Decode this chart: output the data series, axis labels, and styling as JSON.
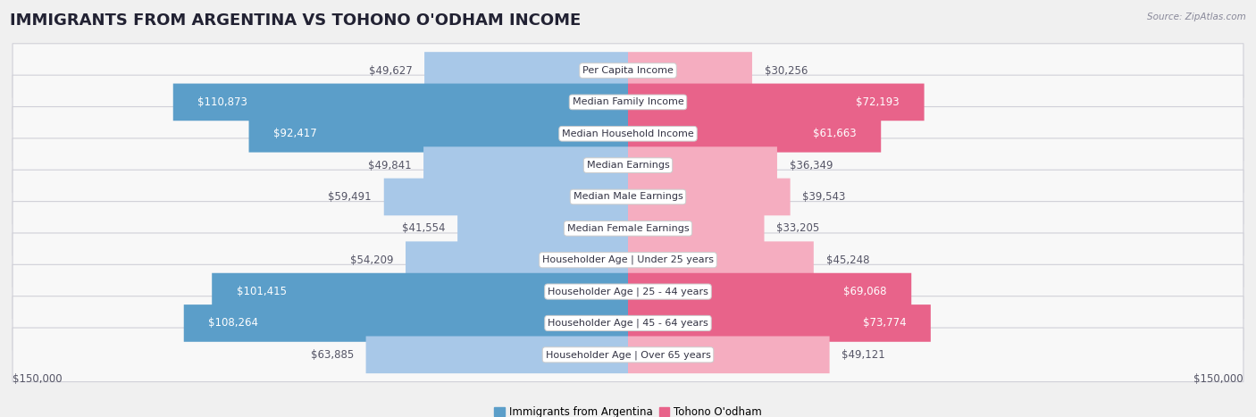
{
  "title": "IMMIGRANTS FROM ARGENTINA VS TOHONO O'ODHAM INCOME",
  "source": "Source: ZipAtlas.com",
  "categories": [
    "Per Capita Income",
    "Median Family Income",
    "Median Household Income",
    "Median Earnings",
    "Median Male Earnings",
    "Median Female Earnings",
    "Householder Age | Under 25 years",
    "Householder Age | 25 - 44 years",
    "Householder Age | 45 - 64 years",
    "Householder Age | Over 65 years"
  ],
  "argentina_values": [
    49627,
    110873,
    92417,
    49841,
    59491,
    41554,
    54209,
    101415,
    108264,
    63885
  ],
  "tohono_values": [
    30256,
    72193,
    61663,
    36349,
    39543,
    33205,
    45248,
    69068,
    73774,
    49121
  ],
  "argentina_labels": [
    "$49,627",
    "$110,873",
    "$92,417",
    "$49,841",
    "$59,491",
    "$41,554",
    "$54,209",
    "$101,415",
    "$108,264",
    "$63,885"
  ],
  "tohono_labels": [
    "$30,256",
    "$72,193",
    "$61,663",
    "$36,349",
    "$39,543",
    "$33,205",
    "$45,248",
    "$69,068",
    "$73,774",
    "$49,121"
  ],
  "argentina_color_dark": "#5b9ec9",
  "argentina_color_light": "#a8c8e8",
  "tohono_color_dark": "#e8638a",
  "tohono_color_light": "#f5adc0",
  "argentina_dark_threshold": 70000,
  "tohono_dark_threshold": 60000,
  "axis_limit": 150000,
  "xlabel_left": "$150,000",
  "xlabel_right": "$150,000",
  "legend_argentina": "Immigrants from Argentina",
  "legend_tohono": "Tohono O'odham",
  "bg_color": "#f0f0f0",
  "row_bg_color": "#f8f8f8",
  "row_border_color": "#d0d0d8",
  "title_fontsize": 13,
  "label_fontsize": 8.5,
  "category_fontsize": 8.0,
  "white_text_color": "#ffffff",
  "dark_text_color": "#555566"
}
